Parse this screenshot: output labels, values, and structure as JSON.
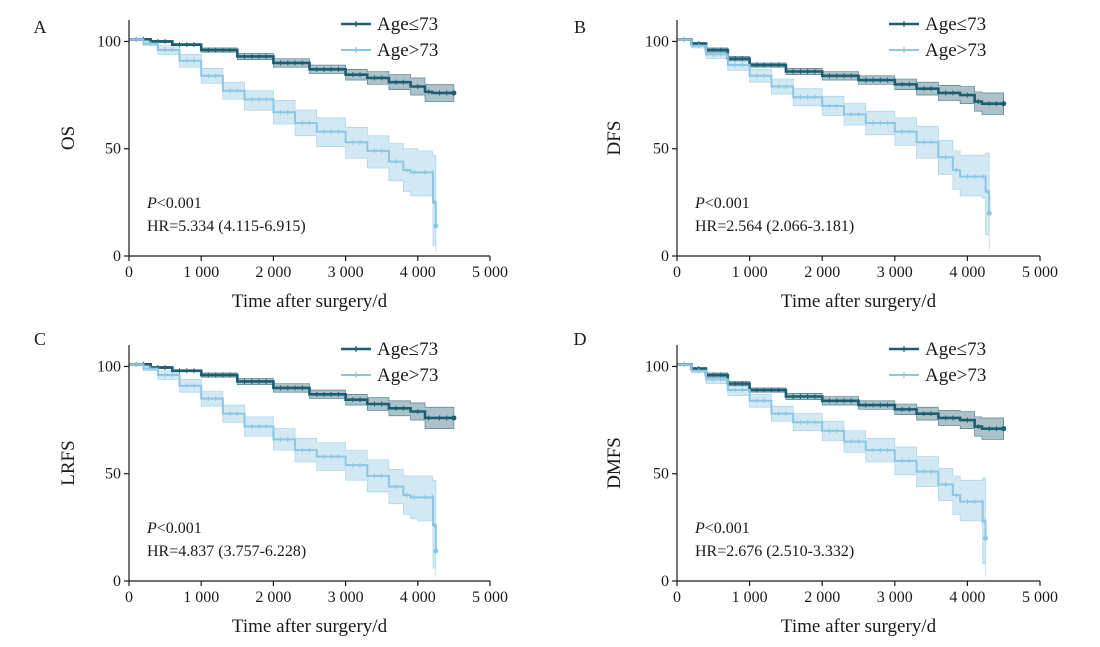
{
  "colors": {
    "young": "#1b5e72",
    "young_band": "#6a8f9b",
    "old": "#8cc6e2",
    "old_band": "#c3e1f0",
    "axis": "#1a1a1a"
  },
  "legend": {
    "young": "Age≤73",
    "old": "Age>73"
  },
  "chart_data": [
    {
      "type": "line",
      "panel": "A",
      "xlabel": "Time after surgery/d",
      "ylabel": "OS",
      "xlim": [
        0,
        5000
      ],
      "ylim": [
        0,
        110
      ],
      "xticks": [
        0,
        1000,
        2000,
        3000,
        4000,
        5000
      ],
      "xtick_labels": [
        "0",
        "1 000",
        "2 000",
        "3 000",
        "4 000",
        "5 000"
      ],
      "yticks": [
        0,
        50,
        100
      ],
      "yticks_labels": [
        "0",
        "50",
        "100"
      ],
      "p_prefix": "P",
      "p_value": "<0.001",
      "hr": "HR=5.334 (4.115-6.915)",
      "series": [
        {
          "name": "Age≤73",
          "x": [
            0,
            300,
            600,
            1000,
            1500,
            2000,
            2500,
            3000,
            3300,
            3600,
            3900,
            4100,
            4200,
            4500
          ],
          "y": [
            101,
            100,
            98.5,
            96,
            93,
            90,
            87,
            84.5,
            83,
            81,
            79,
            76.5,
            76,
            76
          ],
          "ci_low": [
            101,
            99.5,
            98,
            95,
            91.5,
            88,
            85,
            82,
            80,
            77.5,
            75,
            72,
            72,
            72
          ],
          "ci_high": [
            101,
            100.5,
            99,
            97,
            94.5,
            92,
            89,
            87,
            86,
            84.5,
            83,
            80,
            80,
            80
          ]
        },
        {
          "name": "Age>73",
          "x": [
            0,
            200,
            400,
            700,
            1000,
            1300,
            1600,
            2000,
            2300,
            2600,
            3000,
            3300,
            3600,
            3800,
            3900,
            4000,
            4200,
            4210,
            4250
          ],
          "y": [
            101,
            99,
            96,
            91,
            84,
            77,
            73,
            67,
            62,
            58,
            53,
            49,
            44,
            40,
            39,
            39,
            39,
            25,
            14
          ],
          "ci_low": [
            101,
            98,
            94,
            88,
            80.5,
            73,
            68,
            61.5,
            56,
            51,
            45.5,
            41,
            35,
            30,
            28,
            28,
            28,
            5,
            2
          ],
          "ci_high": [
            101,
            100,
            98,
            94,
            87.5,
            81,
            77,
            72.5,
            68,
            64.5,
            60,
            56,
            52.5,
            50,
            50,
            49,
            48,
            47,
            40
          ]
        }
      ]
    },
    {
      "type": "line",
      "panel": "B",
      "xlabel": "Time after surgery/d",
      "ylabel": "DFS",
      "xlim": [
        0,
        5000
      ],
      "ylim": [
        0,
        110
      ],
      "xticks": [
        0,
        1000,
        2000,
        3000,
        4000,
        5000
      ],
      "xtick_labels": [
        "0",
        "1 000",
        "2 000",
        "3 000",
        "4 000",
        "5 000"
      ],
      "yticks": [
        0,
        50,
        100
      ],
      "yticks_labels": [
        "0",
        "50",
        "100"
      ],
      "p_prefix": "P",
      "p_value": "<0.001",
      "hr": "HR=2.564 (2.066-3.181)",
      "series": [
        {
          "name": "Age≤73",
          "x": [
            0,
            200,
            400,
            700,
            1000,
            1500,
            2000,
            2500,
            3000,
            3300,
            3600,
            3900,
            4100,
            4200,
            4500
          ],
          "y": [
            101,
            99,
            96,
            92,
            89,
            86,
            84,
            82,
            80,
            78,
            76,
            75,
            72,
            71,
            71
          ],
          "ci_low": [
            101,
            98.5,
            95,
            91,
            88,
            84.5,
            82,
            80,
            77.5,
            75,
            72.5,
            71,
            67.5,
            66,
            66
          ],
          "ci_high": [
            101,
            99.5,
            97,
            93,
            90,
            87.5,
            86,
            84,
            82.5,
            81,
            79.5,
            79,
            76.5,
            76,
            76
          ]
        },
        {
          "name": "Age>73",
          "x": [
            0,
            200,
            400,
            700,
            1000,
            1300,
            1600,
            2000,
            2300,
            2600,
            3000,
            3300,
            3600,
            3800,
            3900,
            4200,
            4250,
            4300
          ],
          "y": [
            101,
            98,
            94,
            89,
            84,
            79,
            74,
            70,
            66,
            62,
            58,
            53,
            46,
            40,
            37,
            37,
            30,
            20
          ],
          "ci_low": [
            101,
            97,
            92,
            86.5,
            81,
            75.5,
            70,
            65.5,
            61,
            56.5,
            51.5,
            45.5,
            38,
            31,
            28,
            27,
            10,
            2
          ],
          "ci_high": [
            101,
            99,
            96,
            91.5,
            87,
            82.5,
            78,
            74.5,
            71,
            67.5,
            64.5,
            60.5,
            54,
            49,
            47,
            47,
            48,
            48
          ]
        }
      ]
    },
    {
      "type": "line",
      "panel": "C",
      "xlabel": "Time after surgery/d",
      "ylabel": "LRFS",
      "xlim": [
        0,
        5000
      ],
      "ylim": [
        0,
        110
      ],
      "xticks": [
        0,
        1000,
        2000,
        3000,
        4000,
        5000
      ],
      "xtick_labels": [
        "0",
        "1 000",
        "2 000",
        "3 000",
        "4 000",
        "5 000"
      ],
      "yticks": [
        0,
        50,
        100
      ],
      "yticks_labels": [
        "0",
        "50",
        "100"
      ],
      "p_prefix": "P",
      "p_value": "<0.001",
      "hr": "HR=4.837 (3.757-6.228)",
      "series": [
        {
          "name": "Age≤73",
          "x": [
            0,
            300,
            600,
            1000,
            1500,
            2000,
            2500,
            3000,
            3300,
            3600,
            3900,
            4100,
            4200,
            4500
          ],
          "y": [
            101,
            99.5,
            98,
            96,
            93,
            90,
            87,
            84.5,
            82.5,
            80.5,
            79,
            76,
            76,
            76
          ],
          "ci_low": [
            101,
            99,
            97.5,
            95,
            91.5,
            88,
            85,
            82,
            79.5,
            77,
            75,
            71,
            71,
            71
          ],
          "ci_high": [
            101,
            100,
            98.5,
            97,
            94.5,
            92,
            89,
            87,
            85.5,
            84,
            83,
            81,
            81,
            81
          ]
        },
        {
          "name": "Age>73",
          "x": [
            0,
            200,
            400,
            700,
            1000,
            1300,
            1600,
            2000,
            2300,
            2600,
            3000,
            3300,
            3600,
            3800,
            3900,
            4000,
            4200,
            4210,
            4250
          ],
          "y": [
            101,
            99,
            96,
            91,
            85,
            78,
            72,
            66,
            61,
            58,
            54,
            49,
            44,
            40,
            39,
            39,
            39,
            26,
            14
          ],
          "ci_low": [
            101,
            98,
            94,
            88,
            81.5,
            74,
            67.5,
            61,
            55.5,
            51.5,
            47,
            41.5,
            36,
            31,
            29,
            28,
            28,
            6,
            2
          ],
          "ci_high": [
            101,
            100,
            98,
            94,
            88.5,
            82,
            76.5,
            71,
            66.5,
            64.5,
            61,
            56.5,
            52,
            49,
            49,
            49,
            48,
            47,
            40
          ]
        }
      ]
    },
    {
      "type": "line",
      "panel": "D",
      "xlabel": "Time after surgery/d",
      "ylabel": "DMFS",
      "xlim": [
        0,
        5000
      ],
      "ylim": [
        0,
        110
      ],
      "xticks": [
        0,
        1000,
        2000,
        3000,
        4000,
        5000
      ],
      "xtick_labels": [
        "0",
        "1 000",
        "2 000",
        "3 000",
        "4 000",
        "5 000"
      ],
      "yticks": [
        0,
        50,
        100
      ],
      "yticks_labels": [
        "0",
        "50",
        "100"
      ],
      "p_prefix": "P",
      "p_value": "<0.001",
      "hr": "HR=2.676 (2.510-3.332)",
      "series": [
        {
          "name": "Age≤73",
          "x": [
            0,
            200,
            400,
            700,
            1000,
            1500,
            2000,
            2500,
            3000,
            3300,
            3600,
            3900,
            4100,
            4200,
            4500
          ],
          "y": [
            101,
            99,
            96,
            92,
            89,
            86,
            84,
            82,
            80,
            78,
            76,
            75,
            72,
            71,
            71
          ],
          "ci_low": [
            101,
            98.5,
            95,
            91,
            88,
            84.5,
            82,
            80,
            77.5,
            75,
            72.5,
            71,
            67.5,
            66,
            66
          ],
          "ci_high": [
            101,
            99.5,
            97,
            93,
            90,
            87.5,
            86,
            84,
            82.5,
            81,
            79.5,
            79,
            76.5,
            76,
            76
          ]
        },
        {
          "name": "Age>73",
          "x": [
            0,
            200,
            400,
            700,
            1000,
            1300,
            1600,
            2000,
            2300,
            2600,
            3000,
            3300,
            3600,
            3800,
            3900,
            4200,
            4210,
            4250
          ],
          "y": [
            101,
            98,
            94,
            89,
            84,
            78,
            74,
            70,
            65,
            61,
            56,
            51,
            45,
            40,
            37,
            37,
            28,
            20
          ],
          "ci_low": [
            101,
            97,
            92,
            86.5,
            81,
            74.5,
            70,
            65.5,
            60,
            55.5,
            49.5,
            44,
            37.5,
            31,
            28,
            27,
            8,
            2
          ],
          "ci_high": [
            101,
            99,
            96,
            91.5,
            87,
            81.5,
            78,
            74.5,
            70,
            66.5,
            62.5,
            58,
            52.5,
            49,
            47,
            47,
            48,
            48
          ]
        }
      ]
    }
  ]
}
